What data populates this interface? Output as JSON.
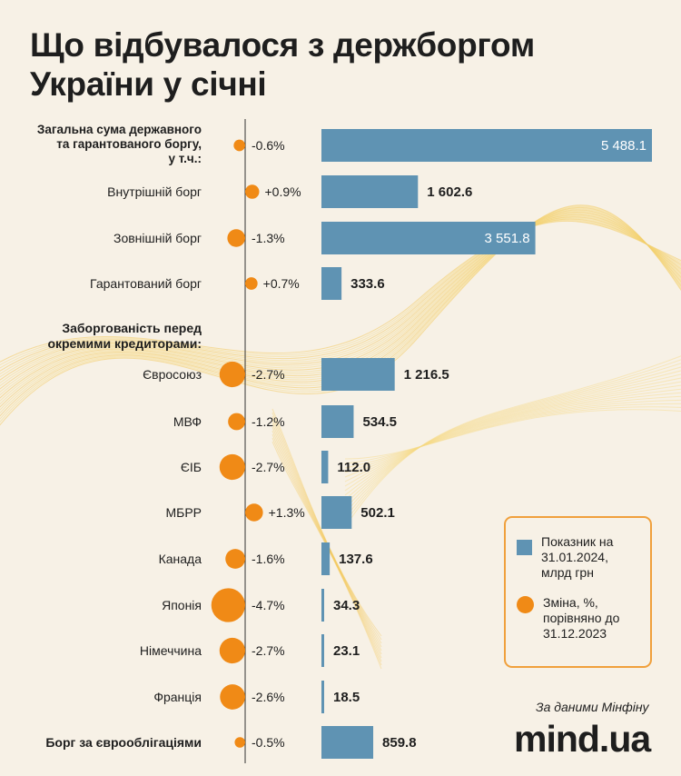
{
  "title_line1": "Що відбувалося з держборгом",
  "title_line2": "України у січні",
  "legend": {
    "value_label": "Показник на 31.01.2024, млрд грн",
    "change_label": "Зміна, %, порівняно до 31.12.2023"
  },
  "source": "За даними Мінфіну",
  "brand": "mind.ua",
  "colors": {
    "bar": "#5f93b3",
    "dot": "#f08a16",
    "background": "#f7f1e6",
    "legend_border": "#f0a03c"
  },
  "chart_data": {
    "type": "bar",
    "orientation": "horizontal",
    "value_unit": "млрд грн",
    "change_unit": "%",
    "rows": [
      {
        "label": "Загальна сума державного та гарантованого боргу, у т.ч.:",
        "value": 5488.1,
        "value_text": "5 488.1",
        "change": -0.6,
        "change_text": "-0.6%",
        "bold": true
      },
      {
        "label": "Внутрішній борг",
        "value": 1602.6,
        "value_text": "1 602.6",
        "change": 0.9,
        "change_text": "+0.9%"
      },
      {
        "label": "Зовнішній борг",
        "value": 3551.8,
        "value_text": "3 551.8",
        "change": -1.3,
        "change_text": "-1.3%"
      },
      {
        "label": "Гарантований борг",
        "value": 333.6,
        "value_text": "333.6",
        "change": 0.7,
        "change_text": "+0.7%"
      },
      {
        "label": "Заборгованість перед окремими кредиторами:",
        "header": true
      },
      {
        "label": "Євросоюз",
        "value": 1216.5,
        "value_text": "1 216.5",
        "change": -2.7,
        "change_text": "-2.7%"
      },
      {
        "label": "МВФ",
        "value": 534.5,
        "value_text": "534.5",
        "change": -1.2,
        "change_text": "-1.2%"
      },
      {
        "label": "ЄІБ",
        "value": 112.0,
        "value_text": "112.0",
        "change": -2.7,
        "change_text": "-2.7%"
      },
      {
        "label": "МБРР",
        "value": 502.1,
        "value_text": "502.1",
        "change": 1.3,
        "change_text": "+1.3%"
      },
      {
        "label": "Канада",
        "value": 137.6,
        "value_text": "137.6",
        "change": -1.6,
        "change_text": "-1.6%"
      },
      {
        "label": "Японія",
        "value": 34.3,
        "value_text": "34.3",
        "change": -4.7,
        "change_text": "-4.7%"
      },
      {
        "label": "Німеччина",
        "value": 23.1,
        "value_text": "23.1",
        "change": -2.7,
        "change_text": "-2.7%"
      },
      {
        "label": "Франція",
        "value": 18.5,
        "value_text": "18.5",
        "change": -2.6,
        "change_text": "-2.6%"
      },
      {
        "label": "Борг за єврооблігаціями",
        "value": 859.8,
        "value_text": "859.8",
        "change": -0.5,
        "change_text": "-0.5%",
        "bold": true
      }
    ]
  }
}
